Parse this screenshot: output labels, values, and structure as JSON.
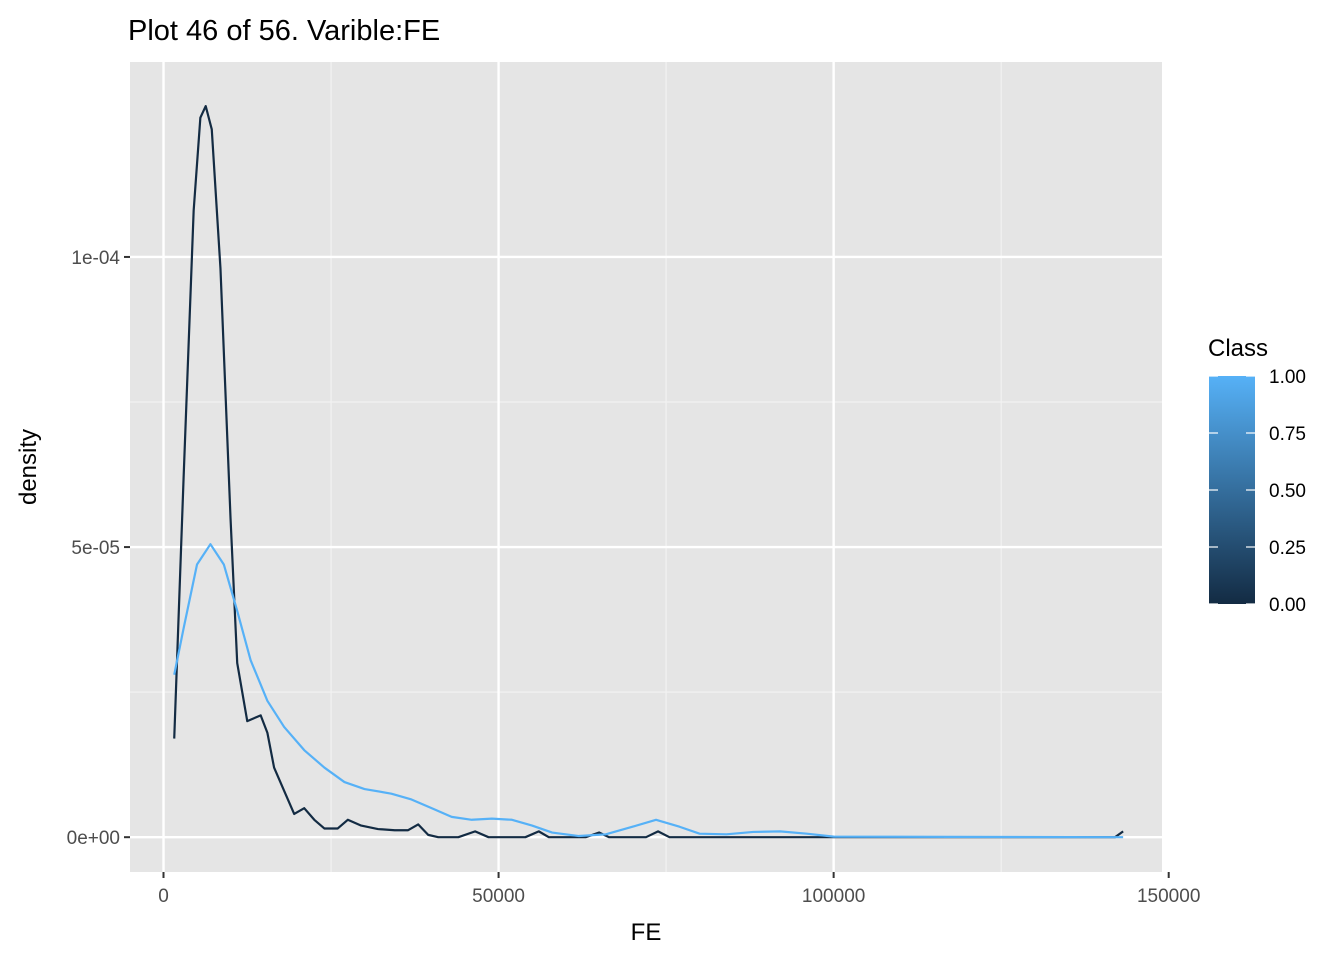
{
  "chart_data": {
    "type": "line",
    "title": "Plot 46 of 56. Varible:FE",
    "xlabel": "FE",
    "ylabel": "density",
    "xlim": [
      -5000,
      149000
    ],
    "ylim": [
      -6e-06,
      0.0001336
    ],
    "x_ticks": [
      0,
      50000,
      100000,
      150000
    ],
    "x_tick_labels": [
      "0",
      "50000",
      "100000",
      "150000"
    ],
    "y_ticks": [
      0,
      5e-05,
      0.0001
    ],
    "y_tick_labels": [
      "0e+00",
      "5e-05",
      "1e-04"
    ],
    "grid": true,
    "panel_background": "#e5e5e5",
    "legend": {
      "title": "Class",
      "type": "colorbar",
      "position": "right",
      "range": [
        0,
        1
      ],
      "ticks": [
        0,
        0.25,
        0.5,
        0.75,
        1
      ],
      "tick_labels": [
        "0.00",
        "0.25",
        "0.50",
        "0.75",
        "1.00"
      ],
      "low_color": "#132b43",
      "high_color": "#56b1f7"
    },
    "series": [
      {
        "class_value": 0,
        "color": "#132b43",
        "points": [
          [
            1600,
            1.7e-05
          ],
          [
            3000,
            6.2e-05
          ],
          [
            4500,
            0.000108
          ],
          [
            5500,
            0.000124
          ],
          [
            6300,
            0.000126
          ],
          [
            7200,
            0.000122
          ],
          [
            8500,
            9.8e-05
          ],
          [
            10000,
            5.5e-05
          ],
          [
            11000,
            3e-05
          ],
          [
            12500,
            2e-05
          ],
          [
            14500,
            2.1e-05
          ],
          [
            15500,
            1.8e-05
          ],
          [
            16500,
            1.2e-05
          ],
          [
            18000,
            8e-06
          ],
          [
            19500,
            4e-06
          ],
          [
            21000,
            5e-06
          ],
          [
            22500,
            3e-06
          ],
          [
            24000,
            1.5e-06
          ],
          [
            26000,
            1.5e-06
          ],
          [
            27500,
            3e-06
          ],
          [
            29500,
            2e-06
          ],
          [
            32000,
            1.4e-06
          ],
          [
            34500,
            1.2e-06
          ],
          [
            36500,
            1.2e-06
          ],
          [
            38000,
            2.2e-06
          ],
          [
            39500,
            4e-07
          ],
          [
            41000,
            0
          ],
          [
            44000,
            0
          ],
          [
            46500,
            1e-06
          ],
          [
            48500,
            0
          ],
          [
            52000,
            0
          ],
          [
            54000,
            0
          ],
          [
            56000,
            1e-06
          ],
          [
            57500,
            0
          ],
          [
            63000,
            0
          ],
          [
            65000,
            8e-07
          ],
          [
            66500,
            0
          ],
          [
            72000,
            0
          ],
          [
            73800,
            1e-06
          ],
          [
            75500,
            0
          ],
          [
            100000,
            0
          ],
          [
            142000,
            0
          ],
          [
            143200,
            1e-06
          ]
        ]
      },
      {
        "class_value": 1,
        "color": "#56b1f7",
        "points": [
          [
            1600,
            2.8e-05
          ],
          [
            3000,
            3.6e-05
          ],
          [
            5000,
            4.7e-05
          ],
          [
            7000,
            5.05e-05
          ],
          [
            9000,
            4.7e-05
          ],
          [
            11000,
            3.9e-05
          ],
          [
            13000,
            3.05e-05
          ],
          [
            15500,
            2.35e-05
          ],
          [
            18000,
            1.9e-05
          ],
          [
            21000,
            1.5e-05
          ],
          [
            24000,
            1.2e-05
          ],
          [
            27000,
            9.5e-06
          ],
          [
            30000,
            8.3e-06
          ],
          [
            34000,
            7.5e-06
          ],
          [
            37000,
            6.5e-06
          ],
          [
            40000,
            5e-06
          ],
          [
            43000,
            3.5e-06
          ],
          [
            46000,
            3e-06
          ],
          [
            49000,
            3.2e-06
          ],
          [
            52000,
            3e-06
          ],
          [
            55000,
            2e-06
          ],
          [
            58000,
            8e-07
          ],
          [
            62000,
            2e-07
          ],
          [
            66000,
            5e-07
          ],
          [
            70000,
            1.8e-06
          ],
          [
            73500,
            3e-06
          ],
          [
            77000,
            1.8e-06
          ],
          [
            80000,
            6e-07
          ],
          [
            84000,
            5e-07
          ],
          [
            88000,
            9e-07
          ],
          [
            92000,
            1e-06
          ],
          [
            96000,
            6e-07
          ],
          [
            100000,
            1e-07
          ],
          [
            143200,
            0
          ]
        ]
      }
    ]
  }
}
